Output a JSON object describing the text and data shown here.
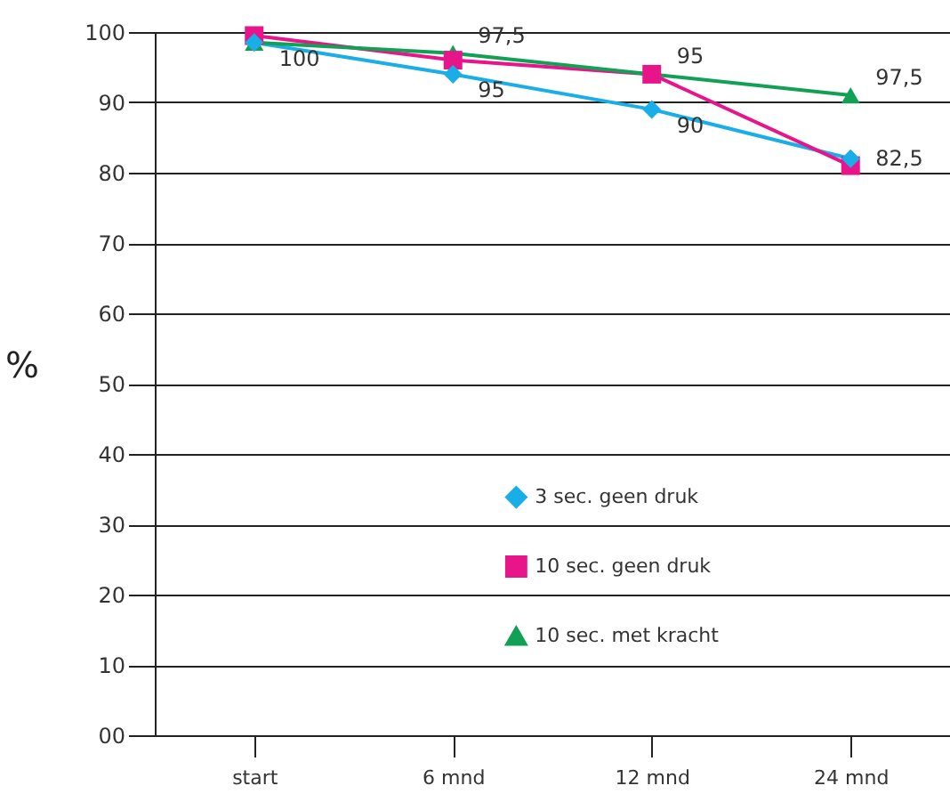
{
  "chart_data": {
    "type": "line",
    "ylabel": "%",
    "categories": [
      "start",
      "6 mnd",
      "12 mnd",
      "24 mnd"
    ],
    "series": [
      {
        "name": "3 sec. geen druk",
        "color": "#1aaee8",
        "marker": "diamond",
        "values": [
          98.5,
          94,
          89,
          82
        ]
      },
      {
        "name": "10 sec. geen druk",
        "color": "#e8158a",
        "marker": "square",
        "values": [
          99.5,
          96,
          94,
          81
        ]
      },
      {
        "name": "10 sec. met kracht",
        "color": "#12a054",
        "marker": "triangle",
        "values": [
          98.5,
          97,
          94,
          91
        ]
      }
    ],
    "ylim": [
      0,
      100
    ],
    "yticks": [
      {
        "value": 0,
        "label": "00"
      },
      10,
      20,
      30,
      40,
      50,
      60,
      70,
      80,
      90,
      100
    ],
    "grid": "y",
    "legend": "bottom",
    "line_style": "solid",
    "annotations": [
      {
        "text": "100",
        "x": "start",
        "y": 98.5
      },
      {
        "text": "95",
        "x": "6 mnd",
        "y": 94
      },
      {
        "text": "97,5",
        "x": "6 mnd",
        "y": 97
      },
      {
        "text": "95",
        "x": "12 mnd",
        "y": 94
      },
      {
        "text": "90",
        "x": "12 mnd",
        "y": 89
      },
      {
        "text": "97,5",
        "x": "24 mnd",
        "y": 91
      },
      {
        "text": "82,5",
        "x": "24 mnd",
        "y": 82
      }
    ]
  }
}
